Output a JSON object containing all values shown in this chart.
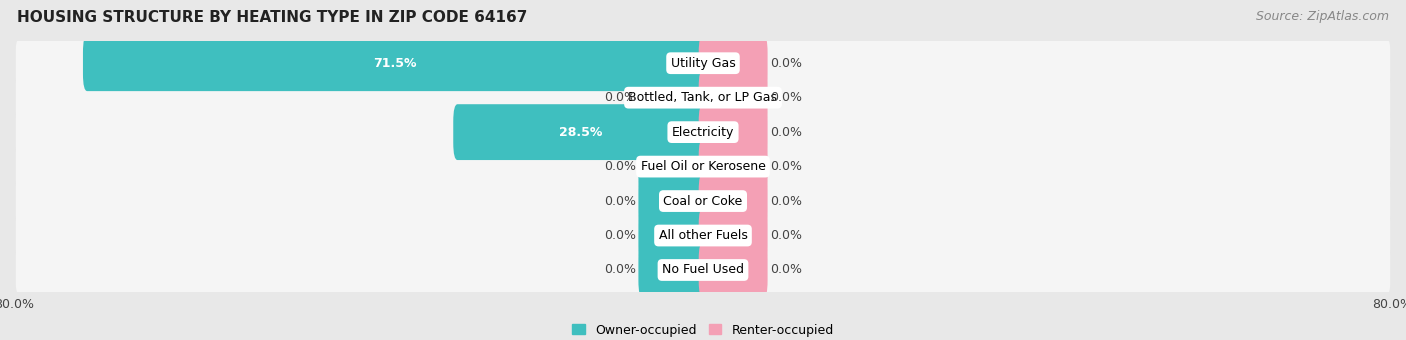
{
  "title": "HOUSING STRUCTURE BY HEATING TYPE IN ZIP CODE 64167",
  "source": "Source: ZipAtlas.com",
  "categories": [
    "Utility Gas",
    "Bottled, Tank, or LP Gas",
    "Electricity",
    "Fuel Oil or Kerosene",
    "Coal or Coke",
    "All other Fuels",
    "No Fuel Used"
  ],
  "owner_values": [
    71.5,
    0.0,
    28.5,
    0.0,
    0.0,
    0.0,
    0.0
  ],
  "renter_values": [
    0.0,
    0.0,
    0.0,
    0.0,
    0.0,
    0.0,
    0.0
  ],
  "owner_color": "#3FBFBF",
  "renter_color": "#F4A0B5",
  "owner_label": "Owner-occupied",
  "renter_label": "Renter-occupied",
  "xlim": 80.0,
  "min_bar_width": 7.0,
  "background_color": "#e8e8e8",
  "row_bg_color": "#f5f5f5",
  "title_fontsize": 11,
  "source_fontsize": 9,
  "label_fontsize": 9,
  "value_fontsize": 9
}
